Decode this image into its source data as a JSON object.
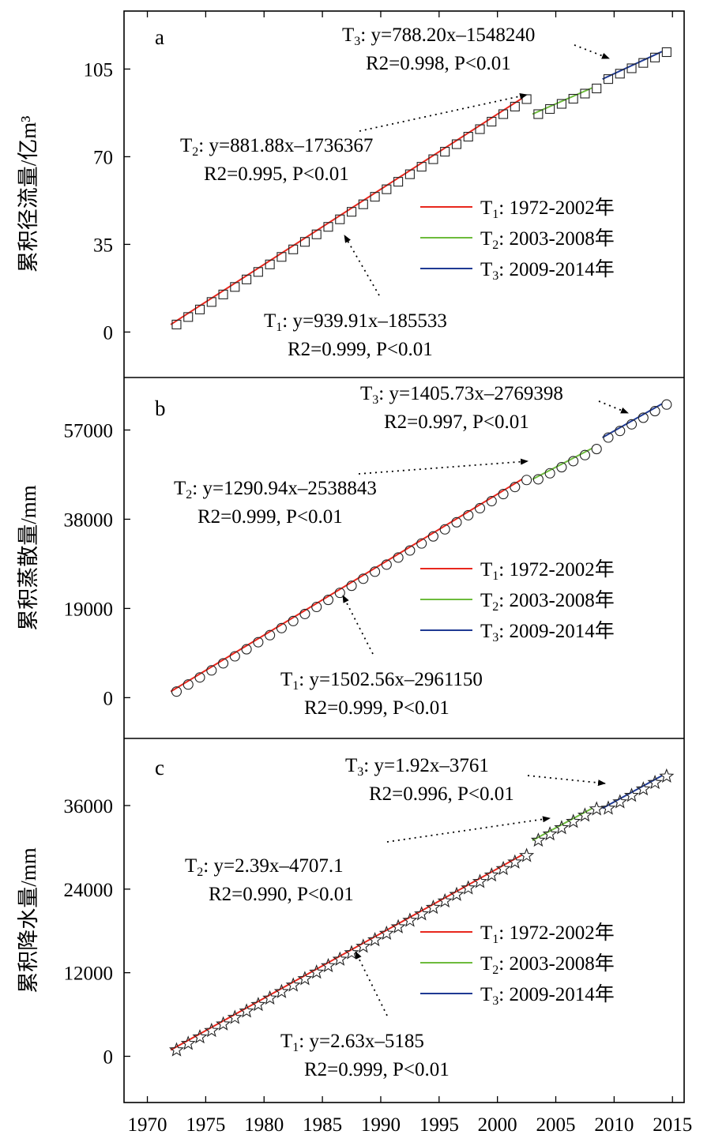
{
  "x_axis": {
    "tick_labels": [
      "1970",
      "1975",
      "1980",
      "1985",
      "1990",
      "1995",
      "2000",
      "2005",
      "2010",
      "2015"
    ]
  },
  "legend": {
    "entries": [
      {
        "name": "T",
        "sub": "1",
        "text": ": 1972-2002年",
        "color": "#e8271d"
      },
      {
        "name": "T",
        "sub": "2",
        "text": ": 2003-2008年",
        "color": "#6dbb3c"
      },
      {
        "name": "T",
        "sub": "3",
        "text": ": 2009-2014年",
        "color": "#1f3a93"
      }
    ]
  },
  "chart_data": [
    {
      "type": "scatter",
      "panel_label": "a",
      "ylabel": "累积径流量/亿m³",
      "marker": "square",
      "xlim": [
        1968,
        2016
      ],
      "ylim": [
        -15,
        125
      ],
      "y_ticks": [
        "0",
        "35",
        "70",
        "105"
      ],
      "series": [
        {
          "name": "T1",
          "years": [
            1972,
            2002
          ],
          "slope": 3.0,
          "start": 3.0
        },
        {
          "name": "T2",
          "years": [
            2003,
            2008
          ],
          "slope": 2.05,
          "start": 87.0
        },
        {
          "name": "T3",
          "years": [
            2009,
            2014
          ],
          "slope": 2.15,
          "start": 101.0
        }
      ],
      "annotations": [
        {
          "id": "t3",
          "label": "T",
          "sub": "3",
          "eq": ": y=788.20x–1548240",
          "stat": "R2=0.998, P<0.01"
        },
        {
          "id": "t2",
          "label": "T",
          "sub": "2",
          "eq": ": y=881.88x–1736367",
          "stat": "R2=0.995, P<0.01"
        },
        {
          "id": "t1",
          "label": "T",
          "sub": "1",
          "eq": ": y=939.91x–185533",
          "stat": "R2=0.999, P<0.01"
        }
      ]
    },
    {
      "type": "scatter",
      "panel_label": "b",
      "ylabel": "累积蒸散量/mm",
      "marker": "circle",
      "xlim": [
        1968,
        2016
      ],
      "ylim": [
        -7000,
        66500
      ],
      "y_ticks": [
        "0",
        "19000",
        "38000",
        "57000"
      ],
      "series": [
        {
          "name": "T1",
          "years": [
            1972,
            2002
          ],
          "slope": 1502.0,
          "start": 1300.0
        },
        {
          "name": "T2",
          "years": [
            2003,
            2008
          ],
          "slope": 1290.0,
          "start": 46500.0
        },
        {
          "name": "T3",
          "years": [
            2009,
            2014
          ],
          "slope": 1405.0,
          "start": 55400.0
        }
      ],
      "annotations": [
        {
          "id": "t3",
          "label": "T",
          "sub": "3",
          "eq": ": y=1405.73x–2769398",
          "stat": "R2=0.997, P<0.01"
        },
        {
          "id": "t2",
          "label": "T",
          "sub": "2",
          "eq": ": y=1290.94x–2538843",
          "stat": "R2=0.999, P<0.01"
        },
        {
          "id": "t1",
          "label": "T",
          "sub": "1",
          "eq": ": y=1502.56x–2961150",
          "stat": "R2=0.999, P<0.01"
        }
      ]
    },
    {
      "type": "scatter",
      "panel_label": "c",
      "ylabel": "累积降水量/mm",
      "marker": "star",
      "xlim": [
        1968,
        2016
      ],
      "ylim": [
        -5500,
        44500
      ],
      "y_ticks": [
        "0",
        "12000",
        "24000",
        "36000"
      ],
      "series": [
        {
          "name": "T1",
          "years": [
            1972,
            2002
          ],
          "slope": 930.0,
          "start": 900.0
        },
        {
          "name": "T2",
          "years": [
            2003,
            2008
          ],
          "slope": 900.0,
          "start": 31000.0
        },
        {
          "name": "T3",
          "years": [
            2009,
            2014
          ],
          "slope": 920.0,
          "start": 35600.0
        }
      ],
      "annotations": [
        {
          "id": "t3",
          "label": "T",
          "sub": "3",
          "eq": ": y=1.92x–3761",
          "stat": "R2=0.996, P<0.01"
        },
        {
          "id": "t2",
          "label": "T",
          "sub": "2",
          "eq": ": y=2.39x–4707.1",
          "stat": "R2=0.990, P<0.01"
        },
        {
          "id": "t1",
          "label": "T",
          "sub": "1",
          "eq": ": y=2.63x–5185",
          "stat": "R2=0.999, P<0.01"
        }
      ]
    }
  ]
}
